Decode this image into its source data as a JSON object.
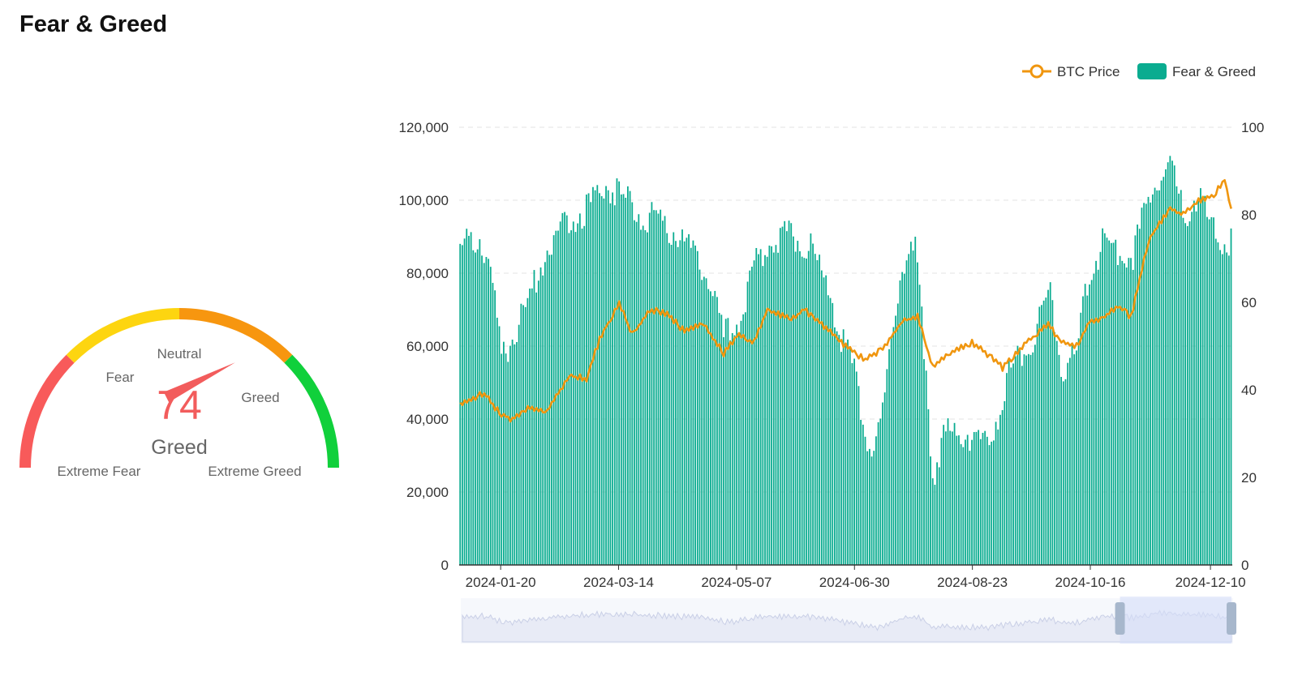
{
  "page": {
    "title": "Fear & Greed"
  },
  "gauge": {
    "value": 74,
    "classification": "Greed",
    "min": 0,
    "max": 100,
    "labels": [
      "Extreme Fear",
      "Fear",
      "Neutral",
      "Greed",
      "Extreme Greed"
    ],
    "segments": [
      {
        "from": 0,
        "to": 25,
        "color": "#f85a5a"
      },
      {
        "from": 25,
        "to": 50,
        "color": "#fdd510"
      },
      {
        "from": 50,
        "to": 75,
        "color": "#f7960f"
      },
      {
        "from": 75,
        "to": 100,
        "color": "#10d03b"
      }
    ],
    "needle_color": "#f25c5c"
  },
  "chart_data": {
    "type": "bar+line",
    "legend": [
      {
        "name": "BTC Price",
        "color": "#f0960f",
        "marker": "line-circle"
      },
      {
        "name": "Fear & Greed",
        "color": "#0aac90",
        "marker": "rect"
      }
    ],
    "legend_position": "top-right",
    "y_left": {
      "min": 0,
      "max": 120000,
      "ticks": [
        "0",
        "20,000",
        "40,000",
        "60,000",
        "80,000",
        "100,000",
        "120,000"
      ]
    },
    "y_right": {
      "min": 0,
      "max": 100,
      "ticks": [
        "0",
        "20",
        "40",
        "60",
        "80",
        "100"
      ]
    },
    "x_range": [
      "2024-01-01",
      "2024-12-20"
    ],
    "x_ticks": [
      "2024-01-20",
      "2024-03-14",
      "2024-05-07",
      "2024-06-30",
      "2024-08-23",
      "2024-10-16",
      "2024-12-10"
    ],
    "grid": "horizontal dashed",
    "series": [
      {
        "name": "Fear & Greed",
        "type": "bar",
        "axis": "right",
        "color": "#0aac90",
        "keyframes": [
          [
            "2024-01-01",
            72
          ],
          [
            "2024-01-10",
            75
          ],
          [
            "2024-01-15",
            68
          ],
          [
            "2024-01-20",
            48
          ],
          [
            "2024-01-25",
            52
          ],
          [
            "2024-02-01",
            60
          ],
          [
            "2024-02-10",
            73
          ],
          [
            "2024-02-20",
            79
          ],
          [
            "2024-03-01",
            82
          ],
          [
            "2024-03-08",
            87
          ],
          [
            "2024-03-14",
            85
          ],
          [
            "2024-03-25",
            80
          ],
          [
            "2024-04-05",
            78
          ],
          [
            "2024-04-15",
            72
          ],
          [
            "2024-04-25",
            66
          ],
          [
            "2024-05-01",
            52
          ],
          [
            "2024-05-07",
            55
          ],
          [
            "2024-05-15",
            68
          ],
          [
            "2024-05-22",
            75
          ],
          [
            "2024-06-01",
            75
          ],
          [
            "2024-06-10",
            73
          ],
          [
            "2024-06-20",
            60
          ],
          [
            "2024-06-25",
            50
          ],
          [
            "2024-06-30",
            45
          ],
          [
            "2024-07-06",
            28
          ],
          [
            "2024-07-12",
            30
          ],
          [
            "2024-07-18",
            55
          ],
          [
            "2024-07-22",
            70
          ],
          [
            "2024-07-28",
            72
          ],
          [
            "2024-08-02",
            45
          ],
          [
            "2024-08-05",
            20
          ],
          [
            "2024-08-10",
            30
          ],
          [
            "2024-08-18",
            30
          ],
          [
            "2024-08-23",
            30
          ],
          [
            "2024-08-28",
            27
          ],
          [
            "2024-09-05",
            35
          ],
          [
            "2024-09-10",
            45
          ],
          [
            "2024-09-18",
            50
          ],
          [
            "2024-09-28",
            62
          ],
          [
            "2024-10-03",
            45
          ],
          [
            "2024-10-10",
            48
          ],
          [
            "2024-10-16",
            68
          ],
          [
            "2024-10-22",
            73
          ],
          [
            "2024-10-30",
            72
          ],
          [
            "2024-11-05",
            70
          ],
          [
            "2024-11-10",
            80
          ],
          [
            "2024-11-15",
            88
          ],
          [
            "2024-11-22",
            92
          ],
          [
            "2024-11-28",
            80
          ],
          [
            "2024-12-05",
            85
          ],
          [
            "2024-12-10",
            78
          ],
          [
            "2024-12-15",
            73
          ],
          [
            "2024-12-20",
            74
          ]
        ]
      },
      {
        "name": "BTC Price",
        "type": "line",
        "axis": "left",
        "color": "#f0960f",
        "keyframes": [
          [
            "2024-01-01",
            44000
          ],
          [
            "2024-01-08",
            46000
          ],
          [
            "2024-01-12",
            47000
          ],
          [
            "2024-01-20",
            41000
          ],
          [
            "2024-01-25",
            40000
          ],
          [
            "2024-02-01",
            43000
          ],
          [
            "2024-02-10",
            42500
          ],
          [
            "2024-02-20",
            52000
          ],
          [
            "2024-02-28",
            51000
          ],
          [
            "2024-03-05",
            62000
          ],
          [
            "2024-03-14",
            72000
          ],
          [
            "2024-03-20",
            63000
          ],
          [
            "2024-03-28",
            70000
          ],
          [
            "2024-04-05",
            69000
          ],
          [
            "2024-04-13",
            64000
          ],
          [
            "2024-04-22",
            66000
          ],
          [
            "2024-05-01",
            58000
          ],
          [
            "2024-05-07",
            63000
          ],
          [
            "2024-05-15",
            61000
          ],
          [
            "2024-05-21",
            70000
          ],
          [
            "2024-06-01",
            67500
          ],
          [
            "2024-06-07",
            70000
          ],
          [
            "2024-06-15",
            66000
          ],
          [
            "2024-06-24",
            61000
          ],
          [
            "2024-07-05",
            56000
          ],
          [
            "2024-07-14",
            60000
          ],
          [
            "2024-07-22",
            67000
          ],
          [
            "2024-07-29",
            68000
          ],
          [
            "2024-08-05",
            54000
          ],
          [
            "2024-08-15",
            59000
          ],
          [
            "2024-08-23",
            61000
          ],
          [
            "2024-09-01",
            57000
          ],
          [
            "2024-09-06",
            54000
          ],
          [
            "2024-09-15",
            60000
          ],
          [
            "2024-09-27",
            66000
          ],
          [
            "2024-10-03",
            61000
          ],
          [
            "2024-10-10",
            60000
          ],
          [
            "2024-10-16",
            67000
          ],
          [
            "2024-10-22",
            67500
          ],
          [
            "2024-10-29",
            71000
          ],
          [
            "2024-11-04",
            68000
          ],
          [
            "2024-11-12",
            89000
          ],
          [
            "2024-11-22",
            98000
          ],
          [
            "2024-11-28",
            96000
          ],
          [
            "2024-12-05",
            100000
          ],
          [
            "2024-12-12",
            101000
          ],
          [
            "2024-12-17",
            106000
          ],
          [
            "2024-12-20",
            97000
          ]
        ]
      }
    ],
    "overview_window": {
      "start": 0.855,
      "end": 1.0
    }
  }
}
